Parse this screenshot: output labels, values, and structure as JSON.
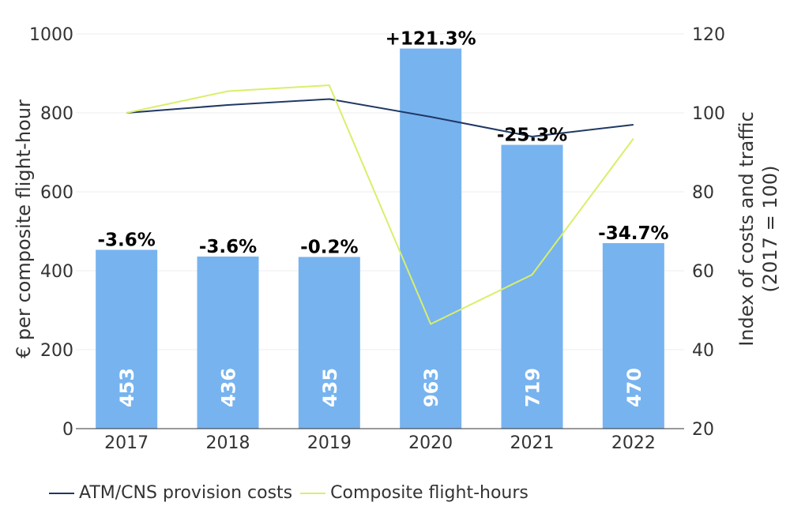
{
  "chart_data": {
    "type": "bar",
    "categories": [
      "2017",
      "2018",
      "2019",
      "2020",
      "2021",
      "2022"
    ],
    "values": [
      453,
      436,
      435,
      963,
      719,
      470
    ],
    "bar_color": "#77b3ef",
    "pct_labels": [
      "-3.6%",
      "-3.6%",
      "-0.2%",
      "+121.3%",
      "-25.3%",
      "-34.7%"
    ],
    "ylabel": "€ per composite flight-hour",
    "ylim": [
      0,
      1000
    ],
    "yticks": [
      0,
      200,
      400,
      600,
      800,
      1000
    ],
    "y2label_line1": "Index of costs and traffic",
    "y2label_line2": "(2017 = 100)",
    "y2lim": [
      20,
      120
    ],
    "y2ticks": [
      20,
      40,
      60,
      80,
      100,
      120
    ],
    "series": [
      {
        "name": "ATM/CNS provision costs",
        "axis": "right",
        "color": "#1f3864",
        "values": [
          100,
          102,
          103.5,
          99,
          94,
          97
        ]
      },
      {
        "name": "Composite flight-hours",
        "axis": "right",
        "color": "#d9ef6b",
        "values": [
          100,
          105.5,
          107,
          46.5,
          59,
          93.5
        ]
      }
    ],
    "grid": true,
    "legend_position": "bottom-left"
  }
}
